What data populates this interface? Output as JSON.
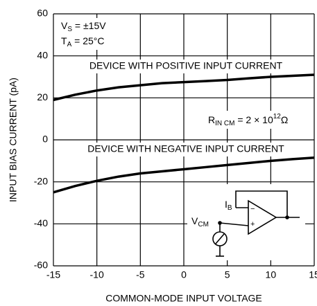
{
  "chart_data": {
    "type": "line",
    "x_label": "COMMON-MODE INPUT VOLTAGE",
    "y_label": "INPUT BIAS CURRENT (pA)",
    "xlim": [
      -15,
      15
    ],
    "xticks": [
      -15,
      -10,
      -5,
      0,
      5,
      10,
      15
    ],
    "ylim": [
      -60,
      60
    ],
    "yticks": [
      -60,
      -40,
      -20,
      0,
      20,
      40,
      60
    ],
    "grid": true,
    "x": [
      -15,
      -12.5,
      -10,
      -7.5,
      -5,
      -2.5,
      0,
      2.5,
      5,
      7.5,
      10,
      12.5,
      15
    ],
    "series": [
      {
        "name": "DEVICE WITH POSITIVE INPUT CURRENT",
        "color": "#000000",
        "values": [
          19,
          21.5,
          23.5,
          25,
          26,
          27,
          27.5,
          28,
          28.5,
          29.3,
          30,
          30.5,
          31
        ]
      },
      {
        "name": "DEVICE WITH NEGATIVE INPUT CURRENT",
        "color": "#000000",
        "values": [
          -25,
          -22,
          -19.5,
          -17.5,
          -16,
          -15,
          -14,
          -13,
          -12,
          -11,
          -10,
          -9.2,
          -8.5
        ]
      }
    ],
    "annotations": [
      [
        "V",
        "S",
        " = ±15V"
      ],
      [
        "T",
        "A",
        " = 25°C"
      ],
      [
        "R",
        "IN CM",
        " = 2 × 10",
        "12",
        "Ω"
      ],
      [
        "I",
        "B"
      ],
      [
        "V",
        "CM"
      ]
    ]
  }
}
